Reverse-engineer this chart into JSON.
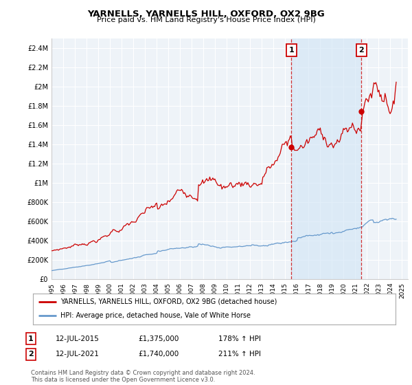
{
  "title": "YARNELLS, YARNELLS HILL, OXFORD, OX2 9BG",
  "subtitle": "Price paid vs. HM Land Registry's House Price Index (HPI)",
  "ylim": [
    0,
    2500000
  ],
  "yticks": [
    0,
    200000,
    400000,
    600000,
    800000,
    1000000,
    1200000,
    1400000,
    1600000,
    1800000,
    2000000,
    2200000,
    2400000
  ],
  "ytick_labels": [
    "£0",
    "£200K",
    "£400K",
    "£600K",
    "£800K",
    "£1M",
    "£1.2M",
    "£1.4M",
    "£1.6M",
    "£1.8M",
    "£2M",
    "£2.2M",
    "£2.4M"
  ],
  "xlim_start": 1995.0,
  "xlim_end": 2025.5,
  "xtick_years": [
    1995,
    1996,
    1997,
    1998,
    1999,
    2000,
    2001,
    2002,
    2003,
    2004,
    2005,
    2006,
    2007,
    2008,
    2009,
    2010,
    2011,
    2012,
    2013,
    2014,
    2015,
    2016,
    2017,
    2018,
    2019,
    2020,
    2021,
    2022,
    2023,
    2024,
    2025
  ],
  "red_line_color": "#cc0000",
  "blue_line_color": "#6699cc",
  "background_color": "#ffffff",
  "plot_bg_color": "#eef3f8",
  "grid_color": "#ffffff",
  "shade_color": "#d0e4f5",
  "marker1_x": 2015.53,
  "marker1_y": 1375000,
  "marker2_x": 2021.53,
  "marker2_y": 1740000,
  "marker1_label": "1",
  "marker2_label": "2",
  "marker_color": "#cc0000",
  "dashed_line1_x": 2015.53,
  "dashed_line2_x": 2021.53,
  "legend_label_red": "YARNELLS, YARNELLS HILL, OXFORD, OX2 9BG (detached house)",
  "legend_label_blue": "HPI: Average price, detached house, Vale of White Horse",
  "annot1_date": "12-JUL-2015",
  "annot1_price": "£1,375,000",
  "annot1_hpi": "178% ↑ HPI",
  "annot2_date": "12-JUL-2021",
  "annot2_price": "£1,740,000",
  "annot2_hpi": "211% ↑ HPI",
  "footer": "Contains HM Land Registry data © Crown copyright and database right 2024.\nThis data is licensed under the Open Government Licence v3.0."
}
